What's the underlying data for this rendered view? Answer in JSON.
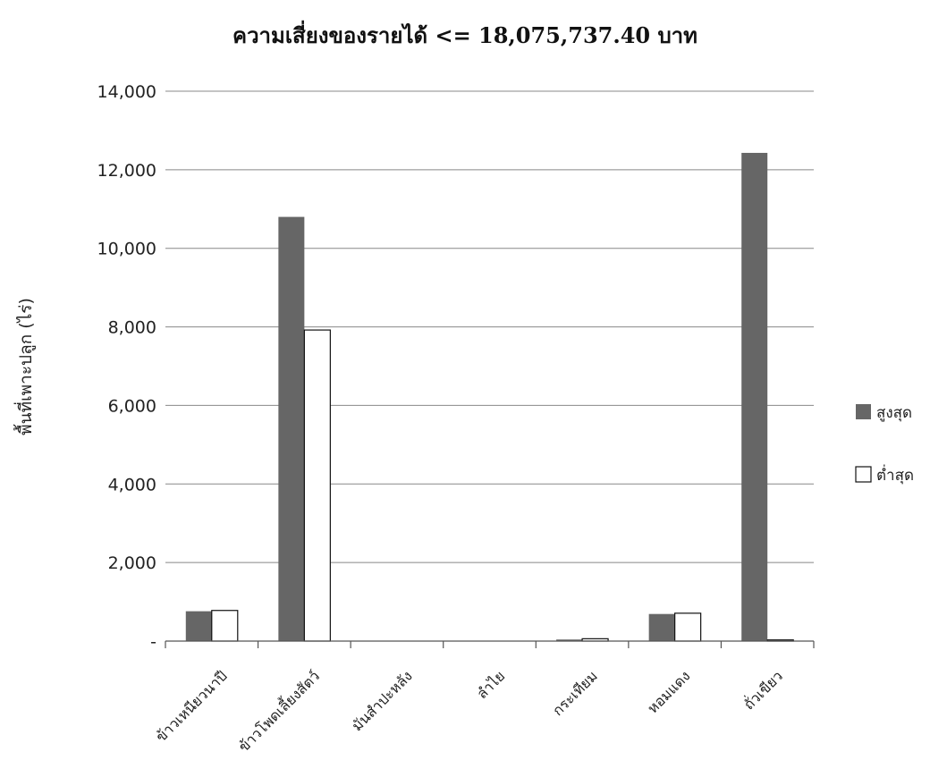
{
  "chart_data": {
    "type": "bar",
    "title": "ความเสี่ยงของรายได้ <= 18,075,737.40 บาท",
    "ylabel": "พื้นที่เพาะปลูก (ไร่)",
    "xlabel": "",
    "categories": [
      "ข้าวเหนียวนาปี",
      "ข้าวโพดเลี้ยงสัตว์",
      "มันสำปะหลัง",
      "ลำไย",
      "กระเทียม",
      "หอมแดง",
      "ถั่วเขียว"
    ],
    "series": [
      {
        "name": "สูงสุด",
        "color": "#666666",
        "values": [
          760,
          10800,
          0,
          0,
          40,
          690,
          12430
        ]
      },
      {
        "name": "ต่ำสุด",
        "color": "#ffffff",
        "values": [
          780,
          7920,
          0,
          0,
          60,
          710,
          30
        ]
      }
    ],
    "ylim": [
      0,
      14000
    ],
    "yticks": [
      0,
      2000,
      4000,
      6000,
      8000,
      10000,
      12000,
      14000
    ],
    "ytick_labels": [
      "-",
      "2,000",
      "4,000",
      "6,000",
      "8,000",
      "10,000",
      "12,000",
      "14,000"
    ],
    "grid": true,
    "legend_position": "right"
  }
}
